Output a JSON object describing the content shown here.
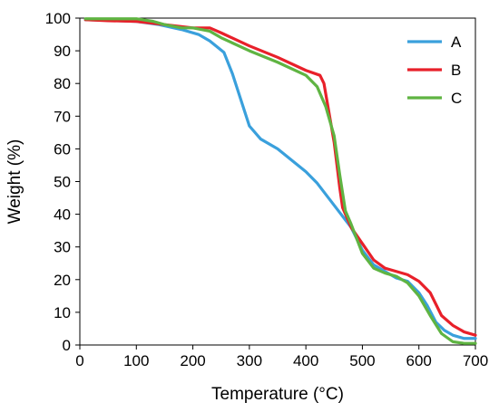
{
  "chart_data": {
    "type": "line",
    "title": "",
    "xlabel": "Temperature (°C)",
    "ylabel": "Weight (%)",
    "xlim": [
      0,
      700
    ],
    "ylim": [
      0,
      100
    ],
    "x_ticks": [
      0,
      100,
      200,
      300,
      400,
      500,
      600,
      700
    ],
    "y_ticks": [
      0,
      10,
      20,
      30,
      40,
      50,
      60,
      70,
      80,
      90,
      100
    ],
    "grid": false,
    "legend_position": "top-right",
    "series": [
      {
        "name": "A",
        "color": "#3AA0DC",
        "points": [
          [
            10,
            99.5
          ],
          [
            50,
            99.3
          ],
          [
            100,
            99
          ],
          [
            140,
            98
          ],
          [
            180,
            96.5
          ],
          [
            210,
            95
          ],
          [
            230,
            93
          ],
          [
            255,
            89.5
          ],
          [
            270,
            83
          ],
          [
            285,
            75
          ],
          [
            300,
            67
          ],
          [
            320,
            63
          ],
          [
            350,
            60
          ],
          [
            400,
            53
          ],
          [
            420,
            49.5
          ],
          [
            440,
            45
          ],
          [
            460,
            40.5
          ],
          [
            480,
            36
          ],
          [
            500,
            29
          ],
          [
            520,
            24.5
          ],
          [
            540,
            22.5
          ],
          [
            560,
            20.5
          ],
          [
            580,
            19.5
          ],
          [
            600,
            16
          ],
          [
            615,
            12
          ],
          [
            630,
            7
          ],
          [
            645,
            4.5
          ],
          [
            660,
            3
          ],
          [
            680,
            2
          ],
          [
            700,
            2
          ]
        ]
      },
      {
        "name": "B",
        "color": "#E8202A",
        "points": [
          [
            10,
            99.5
          ],
          [
            50,
            99.2
          ],
          [
            100,
            99
          ],
          [
            150,
            98
          ],
          [
            200,
            97
          ],
          [
            230,
            97
          ],
          [
            250,
            95.5
          ],
          [
            300,
            91.5
          ],
          [
            350,
            88
          ],
          [
            400,
            84
          ],
          [
            425,
            82.5
          ],
          [
            432,
            80
          ],
          [
            440,
            72
          ],
          [
            450,
            62
          ],
          [
            460,
            48
          ],
          [
            465,
            42
          ],
          [
            480,
            36
          ],
          [
            500,
            31
          ],
          [
            520,
            26
          ],
          [
            540,
            23.5
          ],
          [
            560,
            22.5
          ],
          [
            580,
            21.5
          ],
          [
            600,
            19.5
          ],
          [
            620,
            16
          ],
          [
            640,
            9
          ],
          [
            660,
            6
          ],
          [
            680,
            4
          ],
          [
            700,
            3
          ]
        ]
      },
      {
        "name": "C",
        "color": "#5FB442",
        "points": [
          [
            10,
            99.8
          ],
          [
            50,
            99.8
          ],
          [
            100,
            99.8
          ],
          [
            130,
            99
          ],
          [
            150,
            98
          ],
          [
            180,
            97
          ],
          [
            200,
            97
          ],
          [
            230,
            96
          ],
          [
            250,
            94
          ],
          [
            300,
            90
          ],
          [
            350,
            86.5
          ],
          [
            400,
            82.5
          ],
          [
            420,
            79
          ],
          [
            435,
            73
          ],
          [
            450,
            64
          ],
          [
            460,
            52
          ],
          [
            470,
            41
          ],
          [
            480,
            37
          ],
          [
            500,
            28
          ],
          [
            520,
            23.5
          ],
          [
            540,
            22
          ],
          [
            560,
            21
          ],
          [
            580,
            19
          ],
          [
            600,
            15
          ],
          [
            620,
            9
          ],
          [
            640,
            3.5
          ],
          [
            660,
            1
          ],
          [
            680,
            0.5
          ],
          [
            700,
            0.5
          ]
        ]
      }
    ]
  }
}
